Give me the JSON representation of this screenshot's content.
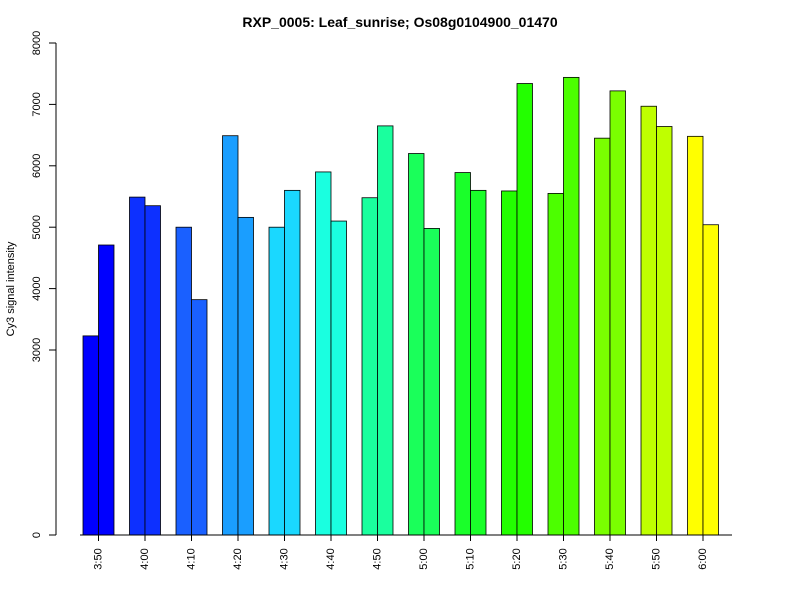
{
  "chart_data": {
    "type": "bar",
    "title": "RXP_0005: Leaf_sunrise; Os08g0104900_01470",
    "xlabel": "",
    "ylabel": "Cy3 signal intensity",
    "categories": [
      "3:50",
      "4:00",
      "4:10",
      "4:20",
      "4:30",
      "4:40",
      "4:50",
      "5:00",
      "5:10",
      "5:20",
      "5:30",
      "5:40",
      "5:50",
      "6:00"
    ],
    "series": [
      {
        "values": [
          3230,
          5490,
          5000,
          6490,
          5000,
          5900,
          5480,
          6200,
          5890,
          5590,
          5550,
          6450,
          6970,
          6480
        ]
      },
      {
        "values": [
          4710,
          5350,
          3820,
          5160,
          5600,
          5100,
          6650,
          4980,
          5600,
          7340,
          7440,
          7220,
          6640,
          5040
        ]
      }
    ],
    "y_scale": "piecewise: compressed segment from 0 to 3000, linear above 3000",
    "ylim": [
      0,
      8000
    ],
    "yticks": [
      0,
      3000,
      4000,
      5000,
      6000,
      7000,
      8000
    ],
    "grid": false,
    "legend": "none",
    "colors": [
      "#0000ff",
      "#0d30ff",
      "#1a60ff",
      "#1a9eff",
      "#1ad8ff",
      "#1affe0",
      "#1aff9e",
      "#1aff5a",
      "#1aff2a",
      "#23ff00",
      "#4cff00",
      "#7aff00",
      "#bfff00",
      "#ffff00"
    ]
  }
}
